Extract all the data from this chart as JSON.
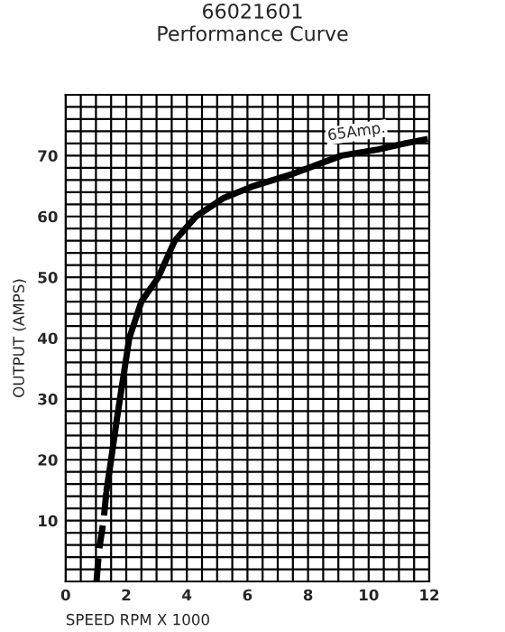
{
  "chart_data": {
    "type": "line",
    "title": "66021601\nPerformance Curve",
    "xlabel": "SPEED RPM X 1000",
    "ylabel": "OUTPUT (AMPS)",
    "series": [
      {
        "color": "#000000",
        "line_style": "dashed",
        "x": [
          1.02,
          1.1,
          1.25,
          1.35
        ],
        "values": [
          0,
          5,
          10,
          15
        ]
      },
      {
        "color": "#000000",
        "line_style": "solid",
        "x": [
          1.35,
          1.5,
          1.7,
          2.1,
          2.5,
          3.06,
          3.6,
          4.3,
          5.2,
          6.2,
          7.5,
          9.1,
          10.3,
          11.2
        ],
        "values": [
          15,
          20,
          27,
          40,
          46,
          50,
          56,
          60,
          63,
          65,
          67,
          70,
          71,
          72
        ]
      },
      {
        "color": "#000000",
        "line_style": "dashed",
        "x": [
          11.2,
          12
        ],
        "values": [
          72,
          72.8
        ]
      }
    ],
    "annotations": [
      {
        "text": "65Amp.",
        "x": 9.6,
        "y": 72
      }
    ],
    "xlim": [
      0,
      12
    ],
    "ylim": [
      0,
      80
    ],
    "xticks": [
      0,
      {
        "value": 0.5,
        "label": null
      },
      2,
      {
        "value": 1,
        "label": null
      },
      {
        "value": 1.5,
        "label": null
      },
      {
        "value": 2.5,
        "label": null
      },
      {
        "value": 3,
        "label": null
      },
      {
        "value": 3.5,
        "label": null
      },
      4,
      {
        "value": 4.5,
        "label": null
      },
      {
        "value": 5,
        "label": null
      },
      {
        "value": 5.5,
        "label": null
      },
      6,
      {
        "value": 6.5,
        "label": null
      },
      {
        "value": 7,
        "label": null
      },
      {
        "value": 7.5,
        "label": null
      },
      8,
      {
        "value": 8.5,
        "label": null
      },
      {
        "value": 9,
        "label": null
      },
      {
        "value": 9.5,
        "label": null
      },
      10,
      {
        "value": 10.5,
        "label": null
      },
      {
        "value": 11,
        "label": null
      },
      {
        "value": 11.5,
        "label": null
      },
      12
    ],
    "yticks": [
      {
        "value": 0,
        "label": null
      },
      {
        "value": 2,
        "label": null
      },
      {
        "value": 4,
        "label": null
      },
      {
        "value": 6,
        "label": null
      },
      {
        "value": 8,
        "label": null
      },
      10,
      {
        "value": 12,
        "label": null
      },
      {
        "value": 14,
        "label": null
      },
      {
        "value": 16,
        "label": null
      },
      {
        "value": 18,
        "label": null
      },
      20,
      {
        "value": 22,
        "label": null
      },
      {
        "value": 24,
        "label": null
      },
      {
        "value": 26,
        "label": null
      },
      {
        "value": 28,
        "label": null
      },
      30,
      {
        "value": 32,
        "label": null
      },
      {
        "value": 34,
        "label": null
      },
      {
        "value": 36,
        "label": null
      },
      {
        "value": 38,
        "label": null
      },
      40,
      {
        "value": 42,
        "label": null
      },
      {
        "value": 44,
        "label": null
      },
      {
        "value": 46,
        "label": null
      },
      {
        "value": 48,
        "label": null
      },
      50,
      {
        "value": 52,
        "label": null
      },
      {
        "value": 54,
        "label": null
      },
      {
        "value": 56,
        "label": null
      },
      {
        "value": 58,
        "label": null
      },
      60,
      {
        "value": 62,
        "label": null
      },
      {
        "value": 64,
        "label": null
      },
      {
        "value": 66,
        "label": null
      },
      {
        "value": 68,
        "label": null
      },
      70,
      {
        "value": 72,
        "label": null
      },
      {
        "value": 74,
        "label": null
      },
      {
        "value": 76,
        "label": null
      },
      {
        "value": 78,
        "label": null
      },
      {
        "value": 80,
        "label": null
      }
    ],
    "grid": true
  }
}
